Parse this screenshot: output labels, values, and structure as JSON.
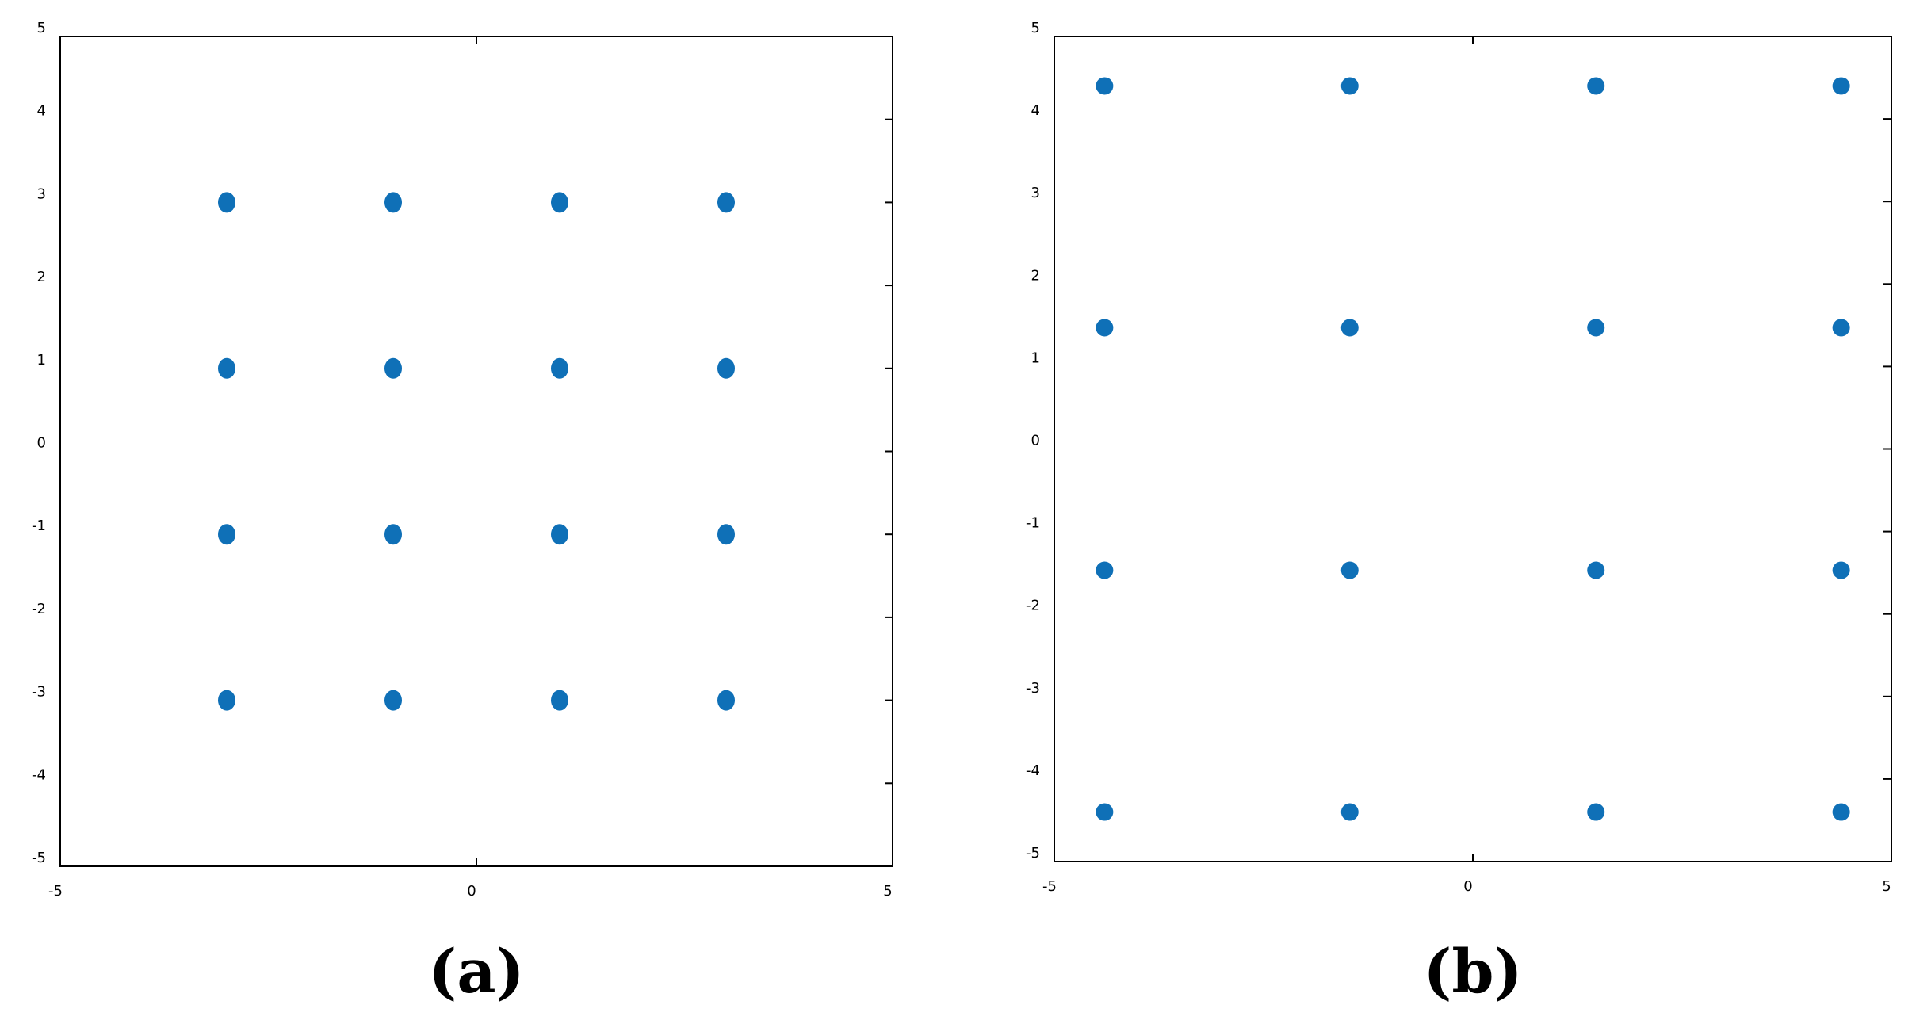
{
  "chart_data": [
    {
      "type": "scatter",
      "label": "(a)",
      "series": [
        {
          "color": "#0f70b7",
          "x": [
            -3,
            -1,
            1,
            3,
            -3,
            -1,
            1,
            3,
            -3,
            -1,
            1,
            3,
            -3,
            -1,
            1,
            3
          ],
          "y": [
            3,
            3,
            3,
            3,
            1,
            1,
            1,
            1,
            -1,
            -1,
            -1,
            -1,
            -3,
            -3,
            -3,
            -3
          ]
        }
      ],
      "xlim": [
        -5,
        5
      ],
      "ylim": [
        -5,
        5
      ],
      "xticks": [
        -5,
        0,
        5
      ],
      "yticks": [
        -5,
        -4,
        -3,
        -2,
        -1,
        0,
        1,
        2,
        3,
        4,
        5
      ]
    },
    {
      "type": "scatter",
      "label": "(b)",
      "series": [
        {
          "color": "#0f70b7",
          "x": [
            -4.4,
            -1.47,
            1.47,
            4.4,
            -4.4,
            -1.47,
            1.47,
            4.4,
            -4.4,
            -1.47,
            1.47,
            4.4,
            -4.4,
            -1.47,
            1.47,
            4.4
          ],
          "y": [
            4.4,
            4.4,
            4.4,
            4.4,
            1.47,
            1.47,
            1.47,
            1.47,
            -1.47,
            -1.47,
            -1.47,
            -1.47,
            -4.4,
            -4.4,
            -4.4,
            -4.4
          ]
        }
      ],
      "xlim": [
        -5,
        5
      ],
      "ylim": [
        -5,
        5
      ],
      "xticks": [
        -5,
        0,
        5
      ],
      "yticks": [
        -5,
        -4,
        -3,
        -2,
        -1,
        0,
        1,
        2,
        3,
        4,
        5
      ]
    }
  ]
}
